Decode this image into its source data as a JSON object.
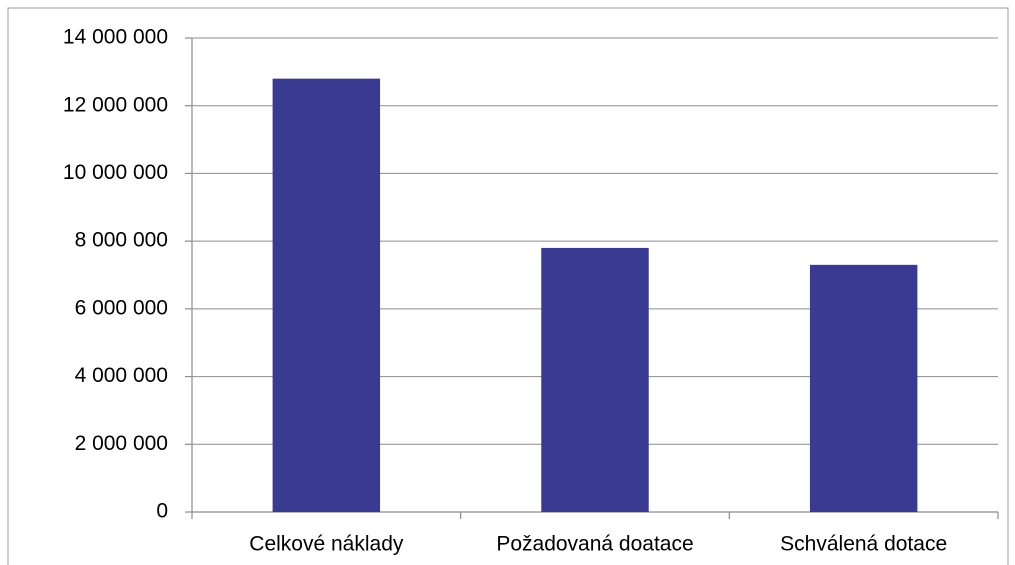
{
  "chart_data": {
    "type": "bar",
    "categories": [
      "Celkové náklady",
      "Požadovaná doatace",
      "Schválená dotace"
    ],
    "values": [
      12800000,
      7800000,
      7300000
    ],
    "color": "#3a3a90",
    "ylim": [
      0,
      14000000
    ],
    "yticks": [
      0,
      {
        "value": 2000000,
        "label": "2 000 000"
      },
      {
        "value": 4000000,
        "label": "4 000 000"
      },
      {
        "value": 6000000,
        "label": "6 000 000"
      },
      {
        "value": 8000000,
        "label": "8 000 000"
      },
      {
        "value": 10000000,
        "label": "10 000 000"
      },
      {
        "value": 12000000,
        "label": "12 000 000"
      },
      {
        "value": 14000000,
        "label": "14 000 000"
      }
    ],
    "grid": true
  }
}
